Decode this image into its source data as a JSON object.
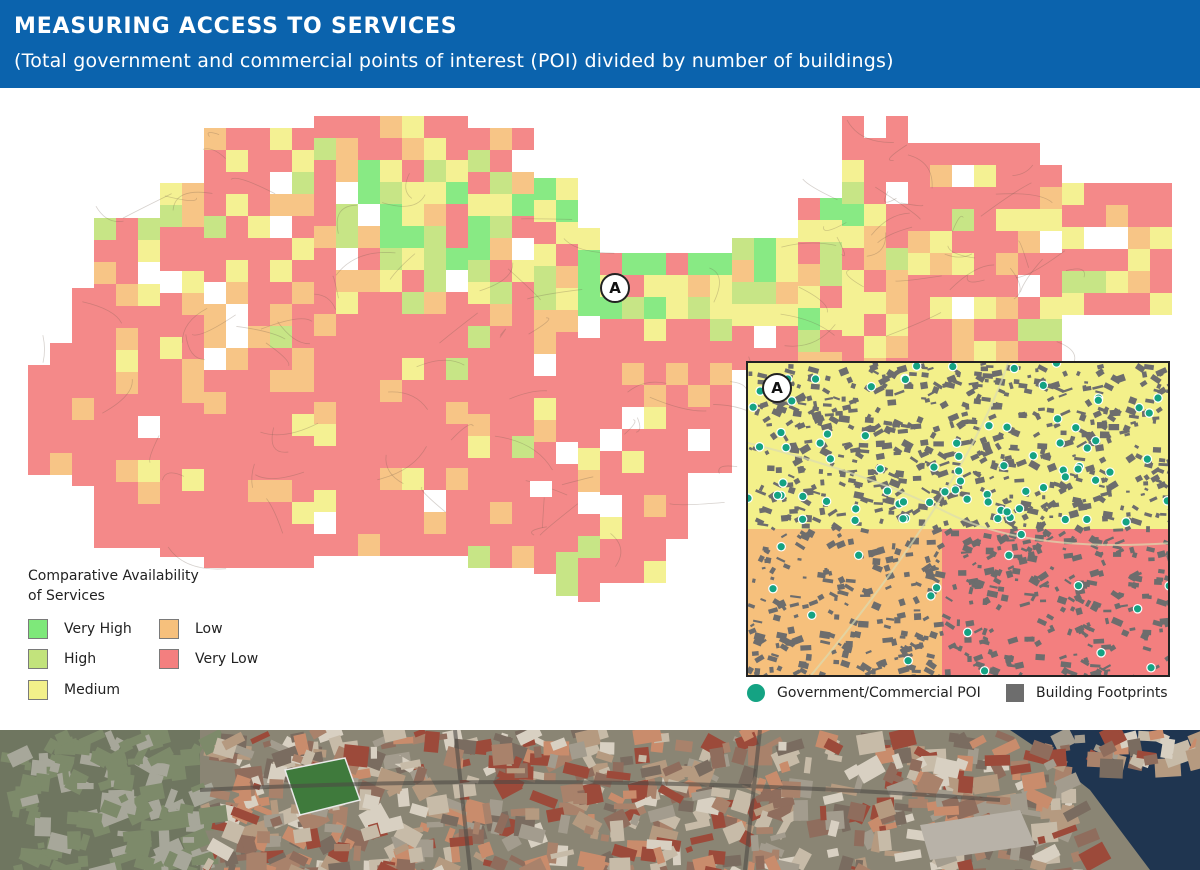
{
  "header": {
    "title": "MEASURING ACCESS TO SERVICES",
    "subtitle": "(Total government and commercial points of interest (POI) divided by number of buildings)"
  },
  "map": {
    "marker_label": "A",
    "categories": [
      {
        "key": "very_high",
        "label": "Very High",
        "color": "#7ee87a"
      },
      {
        "key": "high",
        "label": "High",
        "color": "#c2e37c"
      },
      {
        "key": "medium",
        "label": "Medium",
        "color": "#f3f08a"
      },
      {
        "key": "low",
        "label": "Low",
        "color": "#f6c07c"
      },
      {
        "key": "very_low",
        "label": "Very Low",
        "color": "#f37f7f"
      }
    ]
  },
  "legend": {
    "title_line1": "Comparative Availability",
    "title_line2": "of Services"
  },
  "inset": {
    "marker_label": "A",
    "legend": {
      "poi_label": "Government/Commercial POI",
      "building_label": "Building Footprints"
    },
    "colors": {
      "poi": "#14a383",
      "building": "#6d6d6d"
    }
  }
}
